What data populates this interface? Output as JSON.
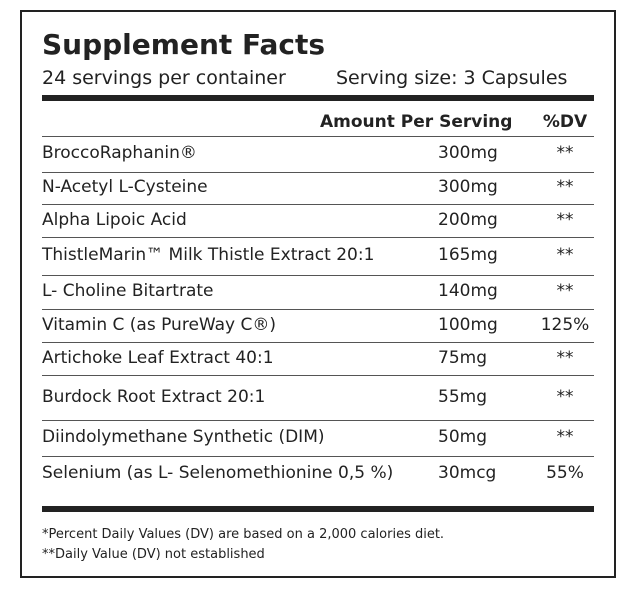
{
  "header": {
    "title": "Supplement Facts",
    "servings": "24 servings per container",
    "serving_size": "Serving size: 3 Capsules"
  },
  "table": {
    "columns": [
      "Amount Per Serving",
      "%DV"
    ],
    "rows": [
      [
        "BroccoRaphanin®",
        "300mg",
        "**"
      ],
      [
        "N-Acetyl L-Cysteine",
        "300mg",
        "**"
      ],
      [
        "Alpha Lipoic Acid",
        "200mg",
        "**"
      ],
      [
        "ThistleMarin™ Milk Thistle Extract 20:1",
        "165mg",
        "**"
      ],
      [
        "L- Choline Bitartrate",
        "140mg",
        "**"
      ],
      [
        "Vitamin C (as PureWay C®)",
        "100mg",
        "125%"
      ],
      [
        "Artichoke Leaf Extract 40:1",
        "75mg",
        "**"
      ],
      [
        "Burdock Root Extract 20:1",
        "55mg",
        "**"
      ],
      [
        "Diindolymethane Synthetic (DIM)",
        "50mg",
        "**"
      ],
      [
        "Selenium (as L- Selenomethionine 0,5 %)",
        "30mcg",
        "55%"
      ]
    ]
  },
  "footnotes": [
    "*Percent Daily Values (DV) are based on a 2,000 calories diet.",
    "**Daily Value (DV) not established"
  ]
}
